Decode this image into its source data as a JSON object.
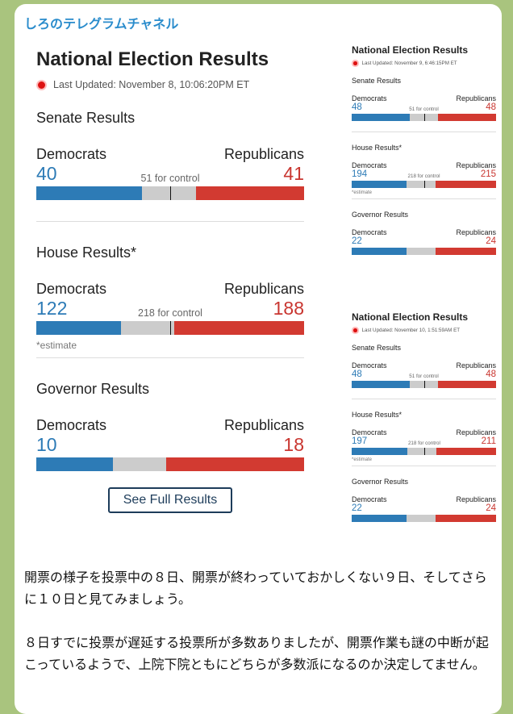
{
  "channel": "しろのテレグラムチャネル",
  "main": {
    "title": "National Election Results",
    "updated": "Last Updated: November 8, 10:06:20PM ET",
    "button": "See Full Results",
    "sections": [
      {
        "title": "Senate Results",
        "dem_label": "Democrats",
        "rep_label": "Republicans",
        "dem": 40,
        "rep": 41,
        "control": "51 for control"
      },
      {
        "title": "House Results*",
        "dem_label": "Democrats",
        "rep_label": "Republicans",
        "dem": 122,
        "rep": 188,
        "control": "218 for control",
        "note": "*estimate"
      },
      {
        "title": "Governor Results",
        "dem_label": "Democrats",
        "rep_label": "Republicans",
        "dem": 10,
        "rep": 18
      }
    ]
  },
  "side": [
    {
      "title": "National Election Results",
      "updated": "Last Updated: November 9, 6:46:15PM ET",
      "sections": [
        {
          "title": "Senate Results",
          "dem_label": "Democrats",
          "rep_label": "Republicans",
          "dem": 48,
          "rep": 48,
          "control": "51 for control"
        },
        {
          "title": "House Results*",
          "dem_label": "Democrats",
          "rep_label": "Republicans",
          "dem": 194,
          "rep": 215,
          "control": "218 for control",
          "note": "*estimate"
        },
        {
          "title": "Governor Results",
          "dem_label": "Democrats",
          "rep_label": "Republicans",
          "dem": 22,
          "rep": 24
        }
      ]
    },
    {
      "title": "National Election Results",
      "updated": "Last Updated: November 10, 1:51:59AM ET",
      "sections": [
        {
          "title": "Senate Results",
          "dem_label": "Democrats",
          "rep_label": "Republicans",
          "dem": 48,
          "rep": 48,
          "control": "51 for control"
        },
        {
          "title": "House Results*",
          "dem_label": "Democrats",
          "rep_label": "Republicans",
          "dem": 197,
          "rep": 211,
          "control": "218 for control",
          "note": "*estimate"
        },
        {
          "title": "Governor Results",
          "dem_label": "Democrats",
          "rep_label": "Republicans",
          "dem": 22,
          "rep": 24
        }
      ]
    }
  ],
  "message": [
    "開票の様子を投票中の８日、開票が終わっていておかしくない９日、そしてさらに１０日と見てみましょう。",
    "８日すでに投票が遅延する投票所が多数ありましたが、開票作業も謎の中断が起こっているようで、上院下院ともにどちらが多数派になるのか決定してません。"
  ]
}
